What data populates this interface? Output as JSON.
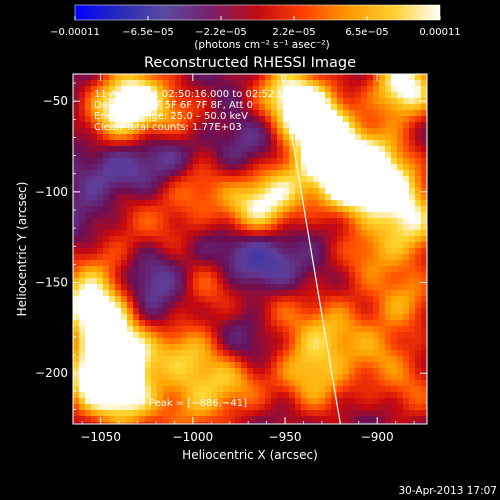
{
  "chart_data": {
    "type": "heatmap",
    "title": "Reconstructed RHESSI Image",
    "xlabel": "Heliocentric X (arcsec)",
    "ylabel": "Heliocentric Y (arcsec)",
    "xlim": [
      -1065,
      -873
    ],
    "ylim": [
      -228,
      -35
    ],
    "x_ticks": [
      {
        "value": -1050,
        "label": "−1050"
      },
      {
        "value": -1000,
        "label": "−1000"
      },
      {
        "value": -950,
        "label": "−950"
      },
      {
        "value": -900,
        "label": "−900"
      }
    ],
    "y_ticks": [
      {
        "value": -50,
        "label": "−50"
      },
      {
        "value": -100,
        "label": "−100"
      },
      {
        "value": -150,
        "label": "−150"
      },
      {
        "value": -200,
        "label": "−200"
      }
    ],
    "colorbar": {
      "min": -0.00011,
      "max": 0.00011,
      "tick_labels": [
        "−0.00011",
        "−6.5e−05",
        "−2.2e−05",
        "2.2e−05",
        "6.5e−05",
        "0.00011"
      ],
      "unit_label": "(photons cm⁻² s⁻¹ asec⁻²)",
      "colors": [
        "#0000ff",
        "#2a2bb8",
        "#5a4aa0",
        "#7a1e6a",
        "#c00a10",
        "#ff4000",
        "#ff9a00",
        "#ffd030",
        "#ffffff"
      ]
    },
    "info_lines": [
      "11-Aug-2002 02:50:16.000 to 02:52:16.000",
      "Detectors: 4F 5F 6F 7F 8F, Att 0",
      "Energy Range: 25.0 – 50.0 keV",
      "Clean     Total counts: 1.77E+03"
    ],
    "peak_label": "Position of Peak = [−886,−41]",
    "peak_position": [
      -886,
      -41
    ],
    "limb_line": [
      [
        -952,
        -35
      ],
      [
        -920,
        -228
      ]
    ],
    "background_level": 0.2,
    "sources": [
      {
        "x": -1030,
        "y": -47,
        "v": 1.0
      },
      {
        "x": -1042,
        "y": -58,
        "v": 0.8
      },
      {
        "x": -1008,
        "y": -62,
        "v": 0.6
      },
      {
        "x": -950,
        "y": -45,
        "v": 0.9
      },
      {
        "x": -935,
        "y": -58,
        "v": 1.2
      },
      {
        "x": -885,
        "y": -42,
        "v": 1.3
      },
      {
        "x": -925,
        "y": -75,
        "v": 0.8
      },
      {
        "x": -915,
        "y": -95,
        "v": 1.3
      },
      {
        "x": -890,
        "y": -100,
        "v": 0.9
      },
      {
        "x": -900,
        "y": -80,
        "v": 0.7
      },
      {
        "x": -880,
        "y": -120,
        "v": 0.8
      },
      {
        "x": -905,
        "y": -135,
        "v": 0.6
      },
      {
        "x": -885,
        "y": -160,
        "v": 0.7
      },
      {
        "x": -900,
        "y": -190,
        "v": 0.6
      },
      {
        "x": -880,
        "y": -210,
        "v": 0.5
      },
      {
        "x": -1000,
        "y": -95,
        "v": 0.7
      },
      {
        "x": -975,
        "y": -115,
        "v": 0.6
      },
      {
        "x": -960,
        "y": -105,
        "v": 0.9
      },
      {
        "x": -945,
        "y": -90,
        "v": 0.5
      },
      {
        "x": -1015,
        "y": -125,
        "v": 0.4
      },
      {
        "x": -990,
        "y": -150,
        "v": 0.6
      },
      {
        "x": -1060,
        "y": -160,
        "v": 0.9
      },
      {
        "x": -1045,
        "y": -170,
        "v": 0.8
      },
      {
        "x": -1040,
        "y": -190,
        "v": 1.3
      },
      {
        "x": -1055,
        "y": -205,
        "v": 1.0
      },
      {
        "x": -1035,
        "y": -215,
        "v": 0.9
      },
      {
        "x": -1010,
        "y": -185,
        "v": 0.6
      },
      {
        "x": -995,
        "y": -195,
        "v": 0.5
      },
      {
        "x": -975,
        "y": -205,
        "v": 0.7
      },
      {
        "x": -1000,
        "y": -220,
        "v": 0.6
      },
      {
        "x": -955,
        "y": -165,
        "v": 0.5
      },
      {
        "x": -940,
        "y": -195,
        "v": 0.6
      },
      {
        "x": -925,
        "y": -175,
        "v": 0.7
      },
      {
        "x": -930,
        "y": -210,
        "v": 0.5
      },
      {
        "x": -1035,
        "y": -110,
        "v": 0.4
      },
      {
        "x": -1050,
        "y": -135,
        "v": 0.5
      },
      {
        "x": -1010,
        "y": -80,
        "v": -0.6
      },
      {
        "x": -1040,
        "y": -90,
        "v": -0.4
      },
      {
        "x": -980,
        "y": -130,
        "v": -0.5
      },
      {
        "x": -960,
        "y": -140,
        "v": -0.5
      },
      {
        "x": -1020,
        "y": -145,
        "v": -0.4
      },
      {
        "x": -1025,
        "y": -170,
        "v": -0.3
      },
      {
        "x": -970,
        "y": -185,
        "v": -0.4
      },
      {
        "x": -965,
        "y": -75,
        "v": -0.3
      },
      {
        "x": -1055,
        "y": -120,
        "v": -0.3
      }
    ]
  },
  "footer": {
    "timestamp": "30-Apr-2013 17:07"
  }
}
